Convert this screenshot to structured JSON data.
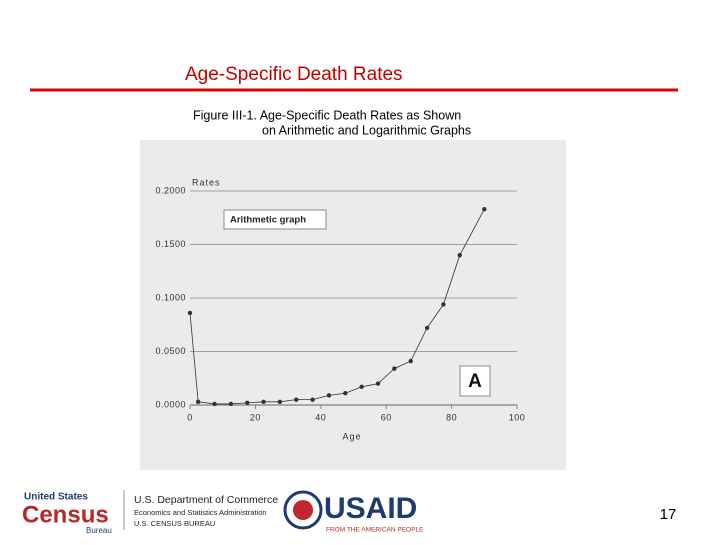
{
  "slide": {
    "title": "Age-Specific Death Rates",
    "page_number": "17"
  },
  "footer": {
    "census_top": "United States",
    "census_main": "Census",
    "census_sub": "Bureau",
    "commerce_1": "U.S. Department of Commerce",
    "commerce_2": "Economics and Statistics Administration",
    "commerce_3": "U.S. CENSUS BUREAU",
    "usaid_main": "USAID",
    "usaid_sub": "FROM THE AMERICAN PEOPLE"
  },
  "chart_data": {
    "type": "line",
    "title": "Figure III-1. Age-Specific Death Rates as Shown",
    "subtitle": "on Arithmetic and Logarithmic Graphs",
    "y_label": "Rates",
    "x_label": "Age",
    "annotations": [
      "Arithmetic graph",
      "A"
    ],
    "x": [
      0,
      2.5,
      7.5,
      12.5,
      17.5,
      22.5,
      27.5,
      32.5,
      37.5,
      42.5,
      47.5,
      52.5,
      57.5,
      62.5,
      67.5,
      72.5,
      77.5,
      82.5,
      90
    ],
    "values": [
      0.086,
      0.003,
      0.001,
      0.001,
      0.002,
      0.003,
      0.003,
      0.005,
      0.005,
      0.009,
      0.011,
      0.017,
      0.02,
      0.034,
      0.041,
      0.072,
      0.094,
      0.14,
      0.183
    ],
    "color": "#333333",
    "xlim": [
      0,
      100
    ],
    "xticks": [
      0,
      20,
      40,
      60,
      80,
      100
    ],
    "ylim": [
      0,
      0.2
    ],
    "yticks": [
      {
        "value": 0,
        "label": "0.0000"
      },
      {
        "value": 0.05,
        "label": "0.0500"
      },
      {
        "value": 0.1,
        "label": "0.1000"
      },
      {
        "value": 0.15,
        "label": "0.1500"
      },
      {
        "value": 0.2,
        "label": "0.2000"
      }
    ],
    "grid": true
  }
}
